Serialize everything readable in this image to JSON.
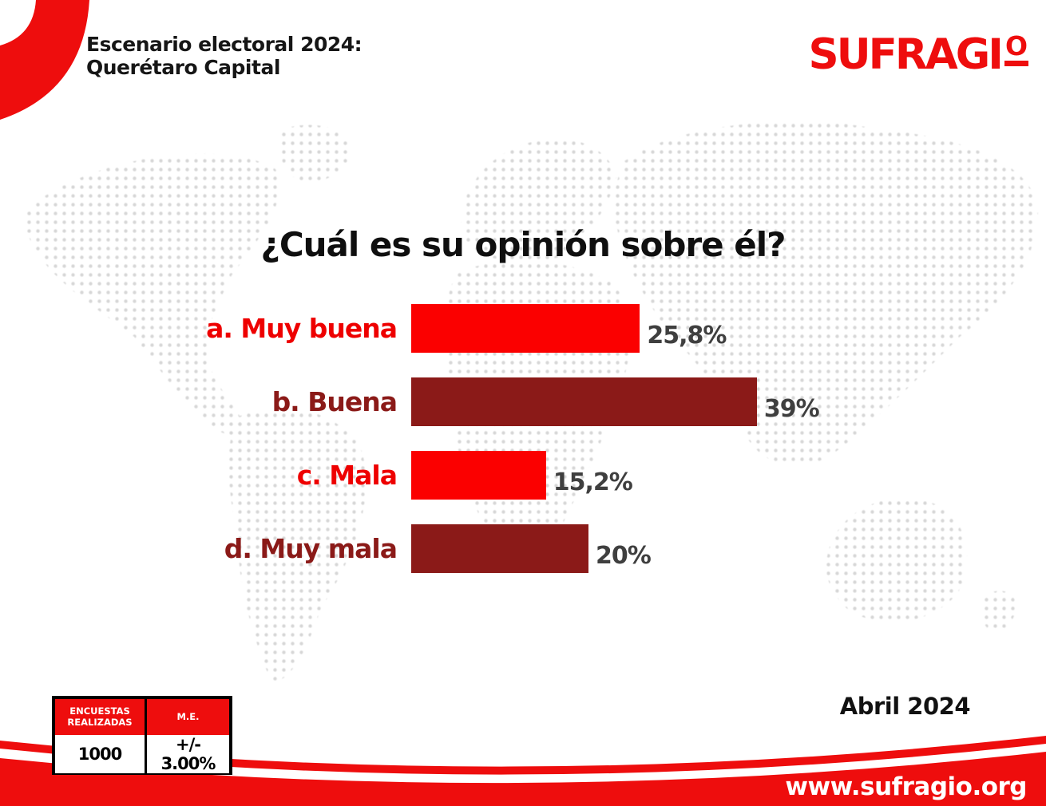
{
  "header": {
    "title_line1": "Escenario electoral 2024:",
    "title_line2": "Querétaro Capital"
  },
  "brand": {
    "name": "SUFRAGIO",
    "logo_main": "SUFRAGI",
    "logo_ordinal": "O",
    "color": "#ee0d0d"
  },
  "chart_data": {
    "type": "bar",
    "orientation": "horizontal",
    "title": "¿Cuál es su opinión sobre él?",
    "categories": [
      "a. Muy buena",
      "b. Buena",
      "c. Mala",
      "d. Muy mala"
    ],
    "values": [
      25.8,
      39,
      15.2,
      20
    ],
    "value_labels": [
      "25,8%",
      "39%",
      "15,2%",
      "20%"
    ],
    "bar_colors": [
      "#fb0000",
      "#8b1a18",
      "#fb0000",
      "#8b1a18"
    ],
    "label_colors": [
      "#ee0000",
      "#8b1a18",
      "#ee0000",
      "#8b1a18"
    ],
    "value_label_color": "#3f3f3f",
    "xlim": [
      0,
      41
    ],
    "grid": false,
    "legend": null,
    "background": "dotted world map, light gray"
  },
  "stats_table": {
    "columns": [
      "ENCUESTAS REALIZADAS",
      "M.E."
    ],
    "rows": [
      [
        "1000",
        "+/- 3.00%"
      ]
    ],
    "header_bg": "#ee0d0d"
  },
  "footer": {
    "date_label": "Abril 2024",
    "website": "www.sufragio.org"
  },
  "colors": {
    "brand_red": "#ee0d0d",
    "bar_bright_red": "#fb0000",
    "bar_dark_red": "#8b1a18",
    "value_text": "#3f3f3f",
    "map_dots": "#d6d6d6"
  }
}
